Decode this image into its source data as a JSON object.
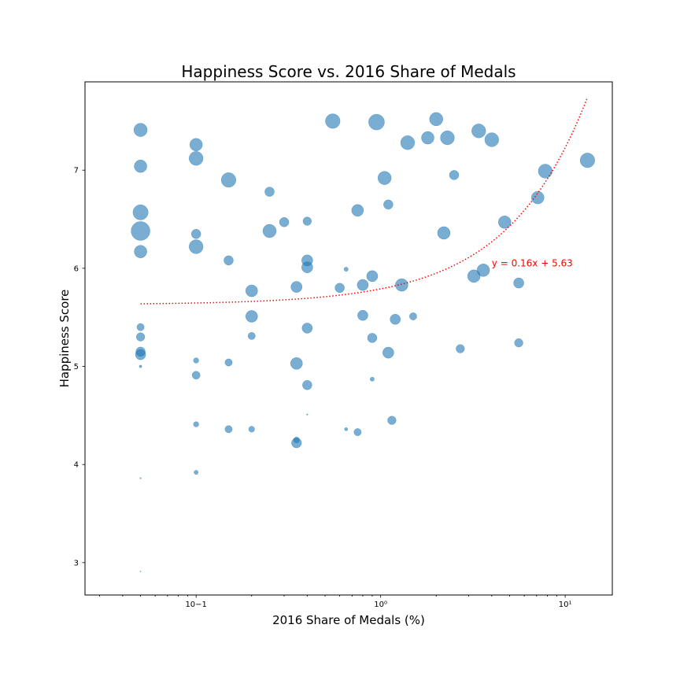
{
  "chart_data": {
    "type": "scatter",
    "title": "Happiness Score vs. 2016 Share of Medals",
    "xlabel": "2016 Share of Medals (%)",
    "ylabel": "Happiness Score",
    "xscale": "log",
    "xlim": [
      0.025,
      18
    ],
    "ylim": [
      2.67,
      7.9
    ],
    "x_ticks": [
      0.1,
      1,
      10
    ],
    "x_tick_labels": [
      "10−1",
      "10⁰",
      "10¹"
    ],
    "y_ticks": [
      3,
      4,
      5,
      6,
      7
    ],
    "y_tick_labels": [
      "3",
      "4",
      "5",
      "6",
      "7"
    ],
    "grid": false,
    "marker_color": "#1f77b4",
    "marker_alpha": 0.6,
    "trendline": {
      "slope": 0.16,
      "intercept": 5.63,
      "x_range": [
        0.05,
        13.2
      ],
      "color": "#ff0000",
      "style": "dotted",
      "label": "y = 0.16x + 5.63",
      "label_at": [
        4.0,
        6.02
      ]
    },
    "points": [
      {
        "x": 0.05,
        "y": 7.41,
        "s": 0.5
      },
      {
        "x": 0.05,
        "y": 7.04,
        "s": 0.45
      },
      {
        "x": 0.05,
        "y": 6.57,
        "s": 0.65
      },
      {
        "x": 0.05,
        "y": 6.38,
        "s": 1.0
      },
      {
        "x": 0.05,
        "y": 6.17,
        "s": 0.45
      },
      {
        "x": 0.05,
        "y": 5.4,
        "s": 0.15
      },
      {
        "x": 0.05,
        "y": 5.3,
        "s": 0.2
      },
      {
        "x": 0.05,
        "y": 5.15,
        "s": 0.25
      },
      {
        "x": 0.05,
        "y": 5.12,
        "s": 0.3
      },
      {
        "x": 0.05,
        "y": 5.0,
        "s": 0.02
      },
      {
        "x": 0.05,
        "y": 3.86,
        "s": 0.005
      },
      {
        "x": 0.05,
        "y": 2.91,
        "s": 0.002
      },
      {
        "x": 0.1,
        "y": 7.26,
        "s": 0.45
      },
      {
        "x": 0.1,
        "y": 7.12,
        "s": 0.55
      },
      {
        "x": 0.1,
        "y": 6.35,
        "s": 0.25
      },
      {
        "x": 0.1,
        "y": 6.22,
        "s": 0.55
      },
      {
        "x": 0.1,
        "y": 5.06,
        "s": 0.08
      },
      {
        "x": 0.1,
        "y": 4.91,
        "s": 0.18
      },
      {
        "x": 0.1,
        "y": 4.41,
        "s": 0.08
      },
      {
        "x": 0.1,
        "y": 3.92,
        "s": 0.05
      },
      {
        "x": 0.15,
        "y": 6.9,
        "s": 0.6
      },
      {
        "x": 0.15,
        "y": 6.08,
        "s": 0.25
      },
      {
        "x": 0.15,
        "y": 5.04,
        "s": 0.15
      },
      {
        "x": 0.15,
        "y": 4.36,
        "s": 0.15
      },
      {
        "x": 0.2,
        "y": 5.77,
        "s": 0.4
      },
      {
        "x": 0.2,
        "y": 5.51,
        "s": 0.4
      },
      {
        "x": 0.2,
        "y": 5.31,
        "s": 0.15
      },
      {
        "x": 0.2,
        "y": 4.36,
        "s": 0.1
      },
      {
        "x": 0.25,
        "y": 6.78,
        "s": 0.25
      },
      {
        "x": 0.25,
        "y": 6.38,
        "s": 0.5
      },
      {
        "x": 0.3,
        "y": 6.47,
        "s": 0.25
      },
      {
        "x": 0.35,
        "y": 5.81,
        "s": 0.35
      },
      {
        "x": 0.35,
        "y": 5.03,
        "s": 0.4
      },
      {
        "x": 0.35,
        "y": 4.25,
        "s": 0.1
      },
      {
        "x": 0.35,
        "y": 4.22,
        "s": 0.28
      },
      {
        "x": 0.4,
        "y": 6.48,
        "s": 0.2
      },
      {
        "x": 0.4,
        "y": 6.08,
        "s": 0.35
      },
      {
        "x": 0.4,
        "y": 6.01,
        "s": 0.35
      },
      {
        "x": 0.4,
        "y": 5.39,
        "s": 0.3
      },
      {
        "x": 0.4,
        "y": 4.81,
        "s": 0.25
      },
      {
        "x": 0.4,
        "y": 4.51,
        "s": 0.005
      },
      {
        "x": 0.55,
        "y": 7.5,
        "s": 0.6
      },
      {
        "x": 0.6,
        "y": 5.8,
        "s": 0.25
      },
      {
        "x": 0.65,
        "y": 5.99,
        "s": 0.05
      },
      {
        "x": 0.65,
        "y": 4.36,
        "s": 0.03
      },
      {
        "x": 0.75,
        "y": 6.59,
        "s": 0.4
      },
      {
        "x": 0.75,
        "y": 4.33,
        "s": 0.15
      },
      {
        "x": 0.8,
        "y": 5.83,
        "s": 0.35
      },
      {
        "x": 0.8,
        "y": 5.52,
        "s": 0.3
      },
      {
        "x": 0.9,
        "y": 5.92,
        "s": 0.35
      },
      {
        "x": 0.9,
        "y": 5.29,
        "s": 0.25
      },
      {
        "x": 0.9,
        "y": 4.87,
        "s": 0.05
      },
      {
        "x": 0.95,
        "y": 7.49,
        "s": 0.7
      },
      {
        "x": 1.05,
        "y": 6.92,
        "s": 0.5
      },
      {
        "x": 1.1,
        "y": 6.65,
        "s": 0.25
      },
      {
        "x": 1.1,
        "y": 5.14,
        "s": 0.35
      },
      {
        "x": 1.15,
        "y": 4.45,
        "s": 0.2
      },
      {
        "x": 1.2,
        "y": 5.48,
        "s": 0.3
      },
      {
        "x": 1.3,
        "y": 5.83,
        "s": 0.45
      },
      {
        "x": 1.4,
        "y": 7.28,
        "s": 0.55
      },
      {
        "x": 1.5,
        "y": 5.51,
        "s": 0.15
      },
      {
        "x": 1.8,
        "y": 7.33,
        "s": 0.45
      },
      {
        "x": 2.0,
        "y": 7.52,
        "s": 0.5
      },
      {
        "x": 2.2,
        "y": 6.36,
        "s": 0.45
      },
      {
        "x": 2.3,
        "y": 7.33,
        "s": 0.55
      },
      {
        "x": 2.5,
        "y": 6.95,
        "s": 0.25
      },
      {
        "x": 2.7,
        "y": 5.18,
        "s": 0.2
      },
      {
        "x": 3.2,
        "y": 5.92,
        "s": 0.45
      },
      {
        "x": 3.4,
        "y": 7.4,
        "s": 0.55
      },
      {
        "x": 3.6,
        "y": 5.98,
        "s": 0.45
      },
      {
        "x": 4.0,
        "y": 7.31,
        "s": 0.55
      },
      {
        "x": 4.7,
        "y": 6.47,
        "s": 0.45
      },
      {
        "x": 5.6,
        "y": 5.85,
        "s": 0.3
      },
      {
        "x": 5.6,
        "y": 5.24,
        "s": 0.2
      },
      {
        "x": 7.1,
        "y": 6.72,
        "s": 0.45
      },
      {
        "x": 7.8,
        "y": 6.99,
        "s": 0.55
      },
      {
        "x": 13.2,
        "y": 7.1,
        "s": 0.6
      }
    ]
  }
}
